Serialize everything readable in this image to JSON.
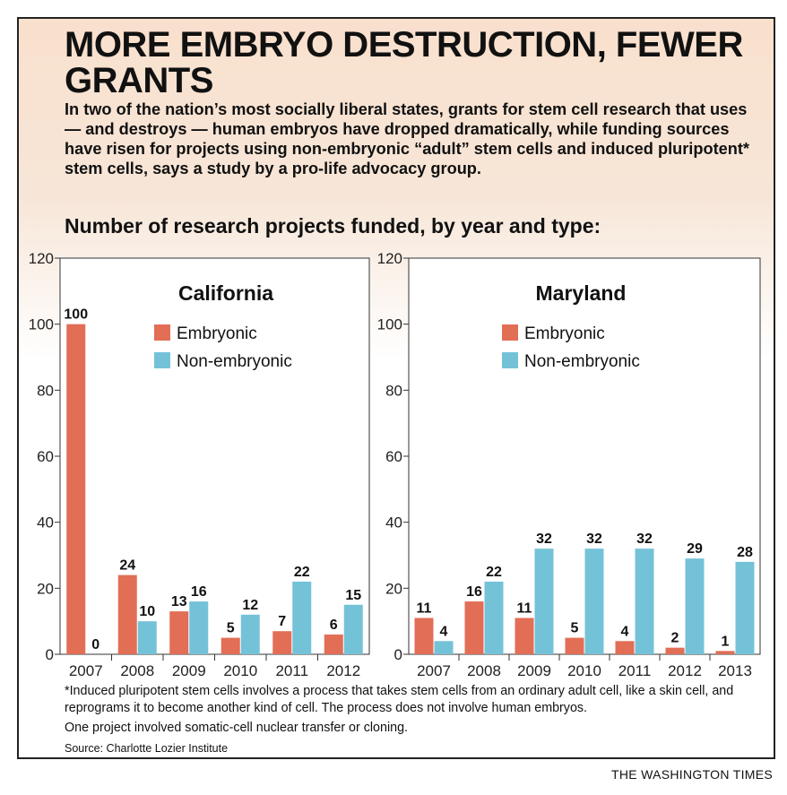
{
  "header": {
    "title": "MORE EMBRYO DESTRUCTION, FEWER GRANTS",
    "intro": "In two of the nation’s most socially liberal states, grants for stem cell research that uses — and destroys — human embryos have dropped dramatically, while funding sources have risen for projects using non-embryonic “adult” stem cells and induced pluripotent* stem cells, says a study by a pro-life advocacy group.",
    "subtitle": "Number of research projects funded, by year and type:"
  },
  "colors": {
    "embryonic": "#e26e56",
    "non_embryonic": "#74c2d8"
  },
  "chart_data": [
    {
      "type": "bar",
      "title": "California",
      "categories": [
        "2007",
        "2008",
        "2009",
        "2010",
        "2011",
        "2012"
      ],
      "series": [
        {
          "name": "Embryonic",
          "values": [
            100,
            24,
            13,
            5,
            7,
            6
          ]
        },
        {
          "name": "Non-embryonic",
          "values": [
            0,
            10,
            16,
            12,
            22,
            15
          ]
        }
      ],
      "ylim": [
        0,
        120
      ],
      "yticks": [
        "0",
        "20",
        "40",
        "60",
        "80",
        "100",
        "120"
      ],
      "legend_position": "top-right",
      "grid": false
    },
    {
      "type": "bar",
      "title": "Maryland",
      "categories": [
        "2007",
        "2008",
        "2009",
        "2010",
        "2011",
        "2012",
        "2013"
      ],
      "series": [
        {
          "name": "Embryonic",
          "values": [
            11,
            16,
            11,
            5,
            4,
            2,
            1
          ]
        },
        {
          "name": "Non-embryonic",
          "values": [
            4,
            22,
            32,
            32,
            32,
            29,
            28
          ]
        }
      ],
      "ylim": [
        0,
        120
      ],
      "yticks": [
        "0",
        "20",
        "40",
        "60",
        "80",
        "100",
        "120"
      ],
      "legend_position": "top-right",
      "grid": false
    }
  ],
  "footer": {
    "footnote": "*Induced pluripotent stem cells involves a process that takes stem cells from an ordinary adult cell, like a skin cell, and reprograms it to become another kind of cell. The process does not involve human embryos.",
    "note": "One project involved somatic-cell nuclear transfer or cloning.",
    "source": "Source: Charlotte Lozier Institute",
    "credit": "THE WASHINGTON TIMES"
  }
}
